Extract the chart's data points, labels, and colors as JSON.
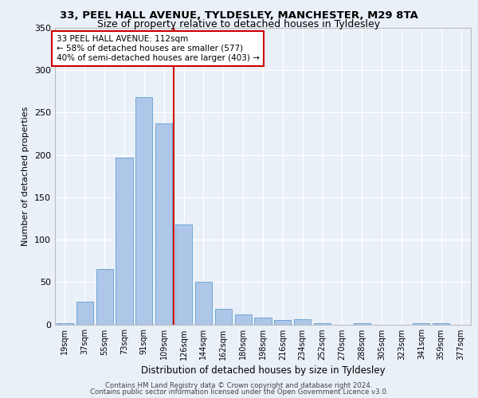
{
  "title1": "33, PEEL HALL AVENUE, TYLDESLEY, MANCHESTER, M29 8TA",
  "title2": "Size of property relative to detached houses in Tyldesley",
  "xlabel": "Distribution of detached houses by size in Tyldesley",
  "ylabel": "Number of detached properties",
  "categories": [
    "19sqm",
    "37sqm",
    "55sqm",
    "73sqm",
    "91sqm",
    "109sqm",
    "126sqm",
    "144sqm",
    "162sqm",
    "180sqm",
    "198sqm",
    "216sqm",
    "234sqm",
    "252sqm",
    "270sqm",
    "288sqm",
    "305sqm",
    "323sqm",
    "341sqm",
    "359sqm",
    "377sqm"
  ],
  "values": [
    1,
    27,
    65,
    197,
    268,
    237,
    118,
    50,
    18,
    12,
    8,
    5,
    6,
    1,
    0,
    1,
    0,
    0,
    1,
    1,
    0
  ],
  "bar_color": "#aec6e8",
  "bar_edgecolor": "#6fa8d6",
  "bar_width": 0.85,
  "vline_x": 5.5,
  "vline_color": "#cc0000",
  "annotation_text": "33 PEEL HALL AVENUE: 112sqm\n← 58% of detached houses are smaller (577)\n40% of semi-detached houses are larger (403) →",
  "annotation_box_color": "#ffffff",
  "annotation_box_edgecolor": "#cc0000",
  "ylim": [
    0,
    350
  ],
  "yticks": [
    0,
    50,
    100,
    150,
    200,
    250,
    300,
    350
  ],
  "footer1": "Contains HM Land Registry data © Crown copyright and database right 2024.",
  "footer2": "Contains public sector information licensed under the Open Government Licence v3.0.",
  "bg_color": "#eaf0f8",
  "plot_bg_color": "#eaf0f8",
  "title1_fontsize": 9.5,
  "title2_fontsize": 9.0,
  "ylabel_fontsize": 8,
  "xlabel_fontsize": 8.5,
  "tick_fontsize": 7,
  "annot_fontsize": 7.5,
  "footer_fontsize": 6.2
}
